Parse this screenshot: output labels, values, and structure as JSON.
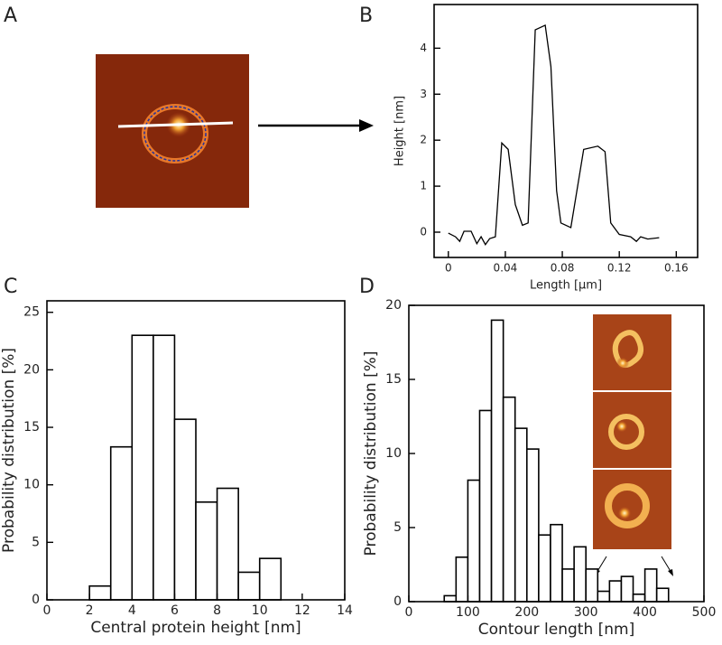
{
  "panels": [
    "A",
    "B",
    "C",
    "D"
  ],
  "chart_data": [
    {
      "type": "line",
      "xlabel": "Length [µm]",
      "ylabel": "Height [nm]",
      "x": [
        0,
        0.005,
        0.008,
        0.011,
        0.016,
        0.02,
        0.023,
        0.026,
        0.029,
        0.033,
        0.0375,
        0.042,
        0.047,
        0.052,
        0.056,
        0.061,
        0.068,
        0.072,
        0.076,
        0.079,
        0.086,
        0.095,
        0.105,
        0.11,
        0.114,
        0.12,
        0.128,
        0.132,
        0.135,
        0.14,
        0.148
      ],
      "values": [
        -0.02,
        -0.1,
        -0.2,
        0.02,
        0.02,
        -0.25,
        -0.1,
        -0.27,
        -0.14,
        -0.1,
        1.94,
        1.8,
        0.6,
        0.15,
        0.2,
        4.4,
        4.5,
        3.6,
        0.9,
        0.2,
        0.1,
        1.8,
        1.87,
        1.75,
        0.2,
        -0.05,
        -0.1,
        -0.2,
        -0.1,
        -0.15,
        -0.12
      ],
      "color": "#000000",
      "xlim": [
        -0.01,
        0.175
      ],
      "ylim": [
        -0.55,
        4.95
      ],
      "xticks": [
        0,
        0.04,
        0.08,
        0.12,
        0.16
      ],
      "yticks": [
        0,
        1,
        2,
        3,
        4
      ]
    },
    {
      "type": "histogram",
      "xlabel": "Central protein height [nm]",
      "ylabel": "Probability distribution [%]",
      "bins": [
        0,
        1,
        2,
        3,
        4,
        5,
        6,
        7,
        8,
        9,
        10,
        11,
        12,
        13
      ],
      "values": [
        0,
        0,
        1.2,
        13.3,
        23,
        23,
        15.7,
        8.5,
        9.7,
        2.4,
        3.6,
        0,
        0
      ],
      "color": "#000000",
      "xlim": [
        0,
        14
      ],
      "ylim": [
        0,
        26
      ],
      "xticks": [
        0,
        2,
        4,
        6,
        8,
        10,
        12,
        14
      ],
      "yticks": [
        0,
        5,
        10,
        15,
        20,
        25
      ]
    },
    {
      "type": "histogram",
      "xlabel": "Contour length [nm]",
      "ylabel": "Probability distribution [%]",
      "bins": [
        0,
        20,
        40,
        60,
        80,
        100,
        120,
        140,
        160,
        180,
        200,
        220,
        240,
        260,
        280,
        300,
        320,
        340,
        360,
        380,
        400,
        420,
        440,
        460,
        480,
        500
      ],
      "values": [
        0,
        0,
        0,
        0.4,
        3.0,
        8.2,
        12.9,
        19,
        13.8,
        11.7,
        10.3,
        4.5,
        5.2,
        2.2,
        3.7,
        2.2,
        0.7,
        1.4,
        1.7,
        0.5,
        2.2,
        0.9,
        0,
        0,
        0
      ],
      "color": "#000000",
      "xlim": [
        0,
        500
      ],
      "ylim": [
        0,
        20
      ],
      "xticks": [
        0,
        100,
        200,
        300,
        400,
        500
      ],
      "yticks": [
        0,
        5,
        10,
        15,
        20
      ]
    }
  ]
}
